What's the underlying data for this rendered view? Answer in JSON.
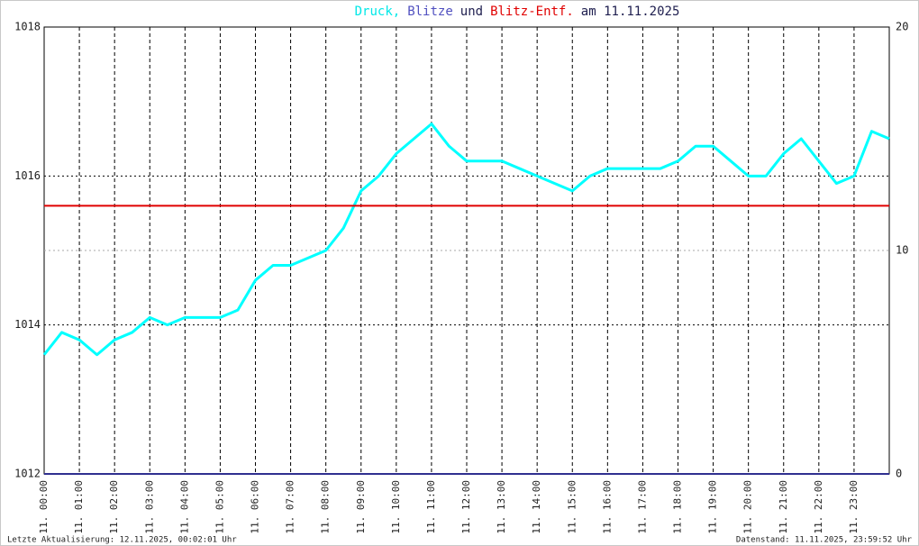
{
  "chart_data": {
    "type": "line",
    "title": [
      {
        "text": "Druck,",
        "color": "#00e8e8"
      },
      {
        "text": "Blitze",
        "color": "#5050c0"
      },
      {
        "text": "und",
        "color": "#202050"
      },
      {
        "text": "Blitz-Entf.",
        "color": "#e00000"
      },
      {
        "text": "am 11.11.2025",
        "color": "#202050"
      }
    ],
    "series": [
      {
        "color": "#00ffff",
        "x": [
          0,
          0.5,
          1,
          1.5,
          2,
          2.5,
          3,
          3.5,
          4,
          4.5,
          5,
          5.5,
          6,
          6.5,
          7,
          7.5,
          8,
          8.5,
          9,
          9.5,
          10,
          10.5,
          11,
          11.5,
          12,
          12.5,
          13,
          13.5,
          14,
          14.5,
          15,
          15.5,
          16,
          16.5,
          17,
          17.5,
          18,
          18.5,
          19,
          19.5,
          20,
          20.5,
          21,
          21.5,
          22,
          22.5,
          23,
          23.5,
          24
        ],
        "values": [
          1013.6,
          1013.9,
          1013.8,
          1013.6,
          1013.8,
          1013.9,
          1014.1,
          1014.0,
          1014.1,
          1014.1,
          1014.1,
          1014.2,
          1014.6,
          1014.8,
          1014.8,
          1014.9,
          1015.0,
          1015.3,
          1015.8,
          1016.0,
          1016.3,
          1016.5,
          1016.7,
          1016.4,
          1016.2,
          1016.2,
          1016.2,
          1016.1,
          1016.0,
          1015.9,
          1015.8,
          1016.0,
          1016.1,
          1016.1,
          1016.1,
          1016.1,
          1016.2,
          1016.4,
          1016.4,
          1016.2,
          1016.0,
          1016.0,
          1016.3,
          1016.5,
          1016.2,
          1015.9,
          1016.0,
          1016.6,
          1016.5
        ]
      },
      {
        "color": "#303090",
        "axis": "y2",
        "x": [
          0,
          24
        ],
        "values": [
          0,
          0
        ]
      },
      {
        "color": "#e00000",
        "axis": "y2",
        "x": [
          0,
          24
        ],
        "values": [
          12,
          12
        ]
      }
    ],
    "xlim": [
      0,
      24
    ],
    "xticks": [
      {
        "value": 0,
        "label": "11. 00:00"
      },
      {
        "value": 1,
        "label": "11. 01:00"
      },
      {
        "value": 2,
        "label": "11. 02:00"
      },
      {
        "value": 3,
        "label": "11. 03:00"
      },
      {
        "value": 4,
        "label": "11. 04:00"
      },
      {
        "value": 5,
        "label": "11. 05:00"
      },
      {
        "value": 6,
        "label": "11. 06:00"
      },
      {
        "value": 7,
        "label": "11. 07:00"
      },
      {
        "value": 8,
        "label": "11. 08:00"
      },
      {
        "value": 9,
        "label": "11. 09:00"
      },
      {
        "value": 10,
        "label": "11. 10:00"
      },
      {
        "value": 11,
        "label": "11. 11:00"
      },
      {
        "value": 12,
        "label": "11. 12:00"
      },
      {
        "value": 13,
        "label": "11. 13:00"
      },
      {
        "value": 14,
        "label": "11. 14:00"
      },
      {
        "value": 15,
        "label": "11. 15:00"
      },
      {
        "value": 16,
        "label": "11. 16:00"
      },
      {
        "value": 17,
        "label": "11. 17:00"
      },
      {
        "value": 18,
        "label": "11. 18:00"
      },
      {
        "value": 19,
        "label": "11. 19:00"
      },
      {
        "value": 20,
        "label": "11. 20:00"
      },
      {
        "value": 21,
        "label": "11. 21:00"
      },
      {
        "value": 22,
        "label": "11. 22:00"
      },
      {
        "value": 23,
        "label": "11. 23:00"
      }
    ],
    "ylim": [
      1012,
      1018
    ],
    "yticks": [
      1012,
      1014,
      1016,
      1018
    ],
    "y2lim": [
      0,
      20
    ],
    "y2ticks": [
      0,
      10,
      20
    ],
    "y2tick_color": [
      {
        "value": 10,
        "color": "#e00000"
      }
    ],
    "grid": true,
    "footer_left": "Letzte Aktualisierung: 12.11.2025, 00:02:01 Uhr",
    "footer_right": "Datenstand: 11.11.2025, 23:59:52 Uhr"
  }
}
